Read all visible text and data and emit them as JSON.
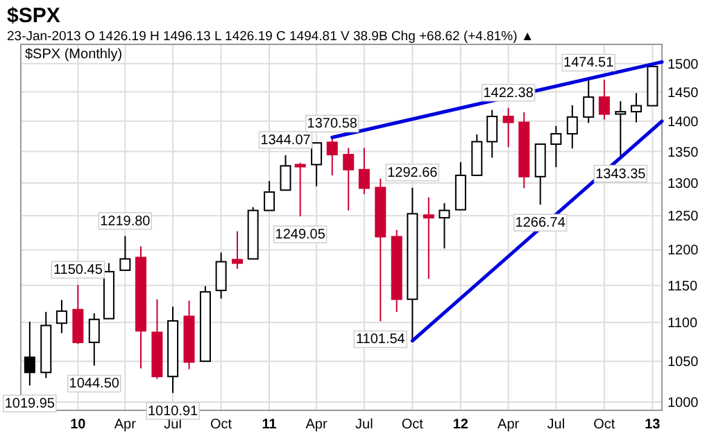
{
  "chart_data": {
    "type": "candlestick",
    "title": "$SPX",
    "subtitle": "23-Jan-2013   O 1426.19  H 1496.13  L 1426.19  C 1494.81  V 38.9B  Chg +68.62 (+4.81%) ▲",
    "x": [
      "2009-10",
      "2009-11",
      "2009-12",
      "2010-01",
      "2010-02",
      "2010-03",
      "2010-04",
      "2010-05",
      "2010-06",
      "2010-07",
      "2010-08",
      "2010-09",
      "2010-10",
      "2010-11",
      "2010-12",
      "2011-01",
      "2011-02",
      "2011-03",
      "2011-04",
      "2011-05",
      "2011-06",
      "2011-07",
      "2011-08",
      "2011-09",
      "2011-10",
      "2011-11",
      "2011-12",
      "2012-01",
      "2012-02",
      "2012-03",
      "2012-04",
      "2012-05",
      "2012-06",
      "2012-07",
      "2012-08",
      "2012-09",
      "2012-10",
      "2012-11",
      "2012-12",
      "2013-01"
    ],
    "ohlc": [
      [
        1055,
        1101,
        1019.95,
        1036
      ],
      [
        1036,
        1114,
        1029,
        1096
      ],
      [
        1099,
        1130,
        1086,
        1115
      ],
      [
        1117,
        1150.45,
        1072,
        1074
      ],
      [
        1074,
        1112,
        1044.5,
        1104
      ],
      [
        1105,
        1181,
        1105,
        1169
      ],
      [
        1171,
        1219.8,
        1171,
        1187
      ],
      [
        1189,
        1205,
        1041,
        1089
      ],
      [
        1087,
        1131,
        1028,
        1031
      ],
      [
        1031,
        1121,
        1010.91,
        1102
      ],
      [
        1108,
        1129,
        1040,
        1049
      ],
      [
        1050,
        1149,
        1050,
        1141
      ],
      [
        1143,
        1196,
        1132,
        1183
      ],
      [
        1186,
        1227,
        1173,
        1181
      ],
      [
        1187,
        1263,
        1187,
        1258
      ],
      [
        1258,
        1303,
        1258,
        1286
      ],
      [
        1289,
        1344.07,
        1289,
        1327
      ],
      [
        1329,
        1332,
        1249.05,
        1326
      ],
      [
        1329,
        1365,
        1295,
        1364
      ],
      [
        1365,
        1370.58,
        1312,
        1345
      ],
      [
        1345,
        1356,
        1258,
        1321
      ],
      [
        1321,
        1356,
        1283,
        1292
      ],
      [
        1293,
        1307,
        1101.54,
        1219
      ],
      [
        1219,
        1229,
        1114,
        1131
      ],
      [
        1131,
        1292.66,
        1075,
        1253
      ],
      [
        1251,
        1278,
        1159,
        1247
      ],
      [
        1247,
        1269,
        1202,
        1258
      ],
      [
        1259,
        1333,
        1259,
        1312
      ],
      [
        1312,
        1378,
        1312,
        1366
      ],
      [
        1366,
        1419,
        1340,
        1408
      ],
      [
        1408,
        1422.38,
        1357,
        1398
      ],
      [
        1398,
        1415,
        1292,
        1310
      ],
      [
        1310,
        1363,
        1266.74,
        1362
      ],
      [
        1362,
        1392,
        1325,
        1379
      ],
      [
        1379,
        1427,
        1355,
        1407
      ],
      [
        1407,
        1474.51,
        1397,
        1441
      ],
      [
        1441,
        1471,
        1403,
        1412
      ],
      [
        1412,
        1434,
        1343.35,
        1416
      ],
      [
        1416,
        1448,
        1398,
        1426.19
      ],
      [
        1426.19,
        1496.13,
        1426.19,
        1494.81
      ]
    ],
    "colors": [
      "#000000",
      "#ffffff",
      "#ffffff",
      "#cc0033",
      "#ffffff",
      "#ffffff",
      "#ffffff",
      "#cc0033",
      "#cc0033",
      "#ffffff",
      "#cc0033",
      "#ffffff",
      "#ffffff",
      "#cc0033",
      "#ffffff",
      "#ffffff",
      "#ffffff",
      "#cc0033",
      "#ffffff",
      "#cc0033",
      "#cc0033",
      "#cc0033",
      "#cc0033",
      "#cc0033",
      "#ffffff",
      "#cc0033",
      "#ffffff",
      "#ffffff",
      "#ffffff",
      "#ffffff",
      "#cc0033",
      "#cc0033",
      "#ffffff",
      "#ffffff",
      "#ffffff",
      "#ffffff",
      "#cc0033",
      "#ffffff",
      "#ffffff",
      "#ffffff"
    ],
    "series": [
      {
        "type": "line",
        "color": "#0000dd",
        "x": [
          "2011-05",
          "2013-01-19"
        ],
        "values": [
          1373,
          1503
        ]
      },
      {
        "type": "line",
        "color": "#0000dd",
        "x": [
          "2011-10",
          "2013-01-19"
        ],
        "values": [
          1076,
          1400
        ]
      }
    ],
    "log": "y",
    "xlim": [
      "2009-09-14",
      "2013-01-19"
    ],
    "ylim": [
      990,
      1535
    ],
    "xticks": [
      {
        "value": "2010-01",
        "label": "10"
      },
      {
        "value": "2010-04",
        "label": "Apr"
      },
      {
        "value": "2010-07",
        "label": "Jul"
      },
      {
        "value": "2010-10",
        "label": "Oct"
      },
      {
        "value": "2011-01",
        "label": "11"
      },
      {
        "value": "2011-04",
        "label": "Apr"
      },
      {
        "value": "2011-07",
        "label": "Jul"
      },
      {
        "value": "2011-10",
        "label": "Oct"
      },
      {
        "value": "2012-01",
        "label": "12"
      },
      {
        "value": "2012-04",
        "label": "Apr"
      },
      {
        "value": "2012-07",
        "label": "Jul"
      },
      {
        "value": "2012-10",
        "label": "Oct"
      },
      {
        "value": "2013-01",
        "label": "13"
      }
    ],
    "yticks": [
      1000,
      1050,
      1100,
      1150,
      1200,
      1250,
      1300,
      1350,
      1400,
      1450,
      1500
    ],
    "grid": true,
    "annotations": [
      "$SPX (Monthly)",
      {
        "text": "1019.95",
        "x": "2009-10",
        "y": 1019.95
      },
      {
        "text": "1150.45",
        "x": "2010-01",
        "y": 1150.45
      },
      {
        "text": "1044.50",
        "x": "2010-02",
        "y": 1044.5
      },
      {
        "text": "1219.80",
        "x": "2010-04",
        "y": 1219.8
      },
      {
        "text": "1010.91",
        "x": "2010-07",
        "y": 1010.91
      },
      {
        "text": "1344.07",
        "x": "2011-02",
        "y": 1344.07
      },
      {
        "text": "1249.05",
        "x": "2011-03",
        "y": 1249.05
      },
      {
        "text": "1370.58",
        "x": "2011-05",
        "y": 1370.58
      },
      {
        "text": "1101.54",
        "x": "2011-08",
        "y": 1101.54
      },
      {
        "text": "1292.66",
        "x": "2011-10",
        "y": 1292.66
      },
      {
        "text": "1422.38",
        "x": "2012-04",
        "y": 1422.38
      },
      {
        "text": "1266.74",
        "x": "2012-06",
        "y": 1266.74
      },
      {
        "text": "1474.51",
        "x": "2012-09",
        "y": 1474.51
      },
      {
        "text": "1343.35",
        "x": "2012-11",
        "y": 1343.35
      }
    ]
  }
}
